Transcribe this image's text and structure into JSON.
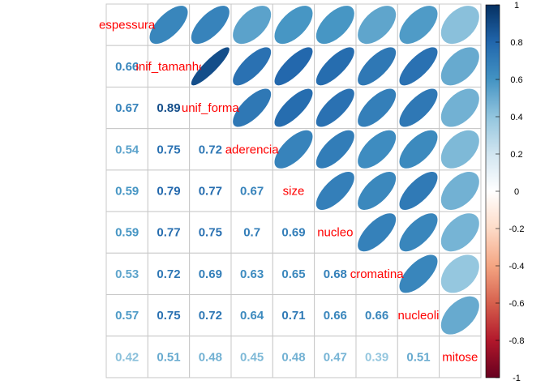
{
  "chart_data": {
    "type": "heatmap",
    "variables": [
      "espessura",
      "unif_tamanho",
      "unif_forma",
      "aderencia",
      "size",
      "nucleo",
      "cromatina",
      "nucleoli",
      "mitose"
    ],
    "matrix": [
      [
        1.0,
        0.66,
        0.67,
        0.54,
        0.59,
        0.59,
        0.53,
        0.57,
        0.42
      ],
      [
        0.66,
        1.0,
        0.89,
        0.75,
        0.79,
        0.77,
        0.72,
        0.75,
        0.51
      ],
      [
        0.67,
        0.89,
        1.0,
        0.72,
        0.77,
        0.75,
        0.69,
        0.72,
        0.48
      ],
      [
        0.54,
        0.75,
        0.72,
        1.0,
        0.67,
        0.7,
        0.63,
        0.64,
        0.45
      ],
      [
        0.59,
        0.79,
        0.77,
        0.67,
        1.0,
        0.69,
        0.65,
        0.71,
        0.48
      ],
      [
        0.59,
        0.77,
        0.75,
        0.7,
        0.69,
        1.0,
        0.68,
        0.66,
        0.47
      ],
      [
        0.53,
        0.72,
        0.69,
        0.63,
        0.65,
        0.68,
        1.0,
        0.66,
        0.39
      ],
      [
        0.57,
        0.75,
        0.72,
        0.64,
        0.71,
        0.66,
        0.66,
        1.0,
        0.51
      ],
      [
        0.42,
        0.51,
        0.48,
        0.45,
        0.48,
        0.47,
        0.39,
        0.51,
        1.0
      ]
    ],
    "lower_labels": [
      [],
      [
        "0.66"
      ],
      [
        "0.67",
        "0.89"
      ],
      [
        "0.54",
        "0.75",
        "0.72"
      ],
      [
        "0.59",
        "0.79",
        "0.77",
        "0.67"
      ],
      [
        "0.59",
        "0.77",
        "0.75",
        "0.7",
        "0.69"
      ],
      [
        "0.53",
        "0.72",
        "0.69",
        "0.63",
        "0.65",
        "0.68"
      ],
      [
        "0.57",
        "0.75",
        "0.72",
        "0.64",
        "0.71",
        "0.66",
        "0.66"
      ],
      [
        "0.42",
        "0.51",
        "0.48",
        "0.45",
        "0.48",
        "0.47",
        "0.39",
        "0.51"
      ]
    ],
    "upper_method": "ellipse",
    "lower_method": "number",
    "colorbar": {
      "range": [
        -1,
        1
      ],
      "ticks": [
        "1",
        "0.8",
        "0.6",
        "0.4",
        "0.2",
        "0",
        "-0.2",
        "-0.4",
        "-0.6",
        "-0.8",
        "-1"
      ],
      "placement": "right"
    },
    "diag_label_color": "#ff0000"
  }
}
